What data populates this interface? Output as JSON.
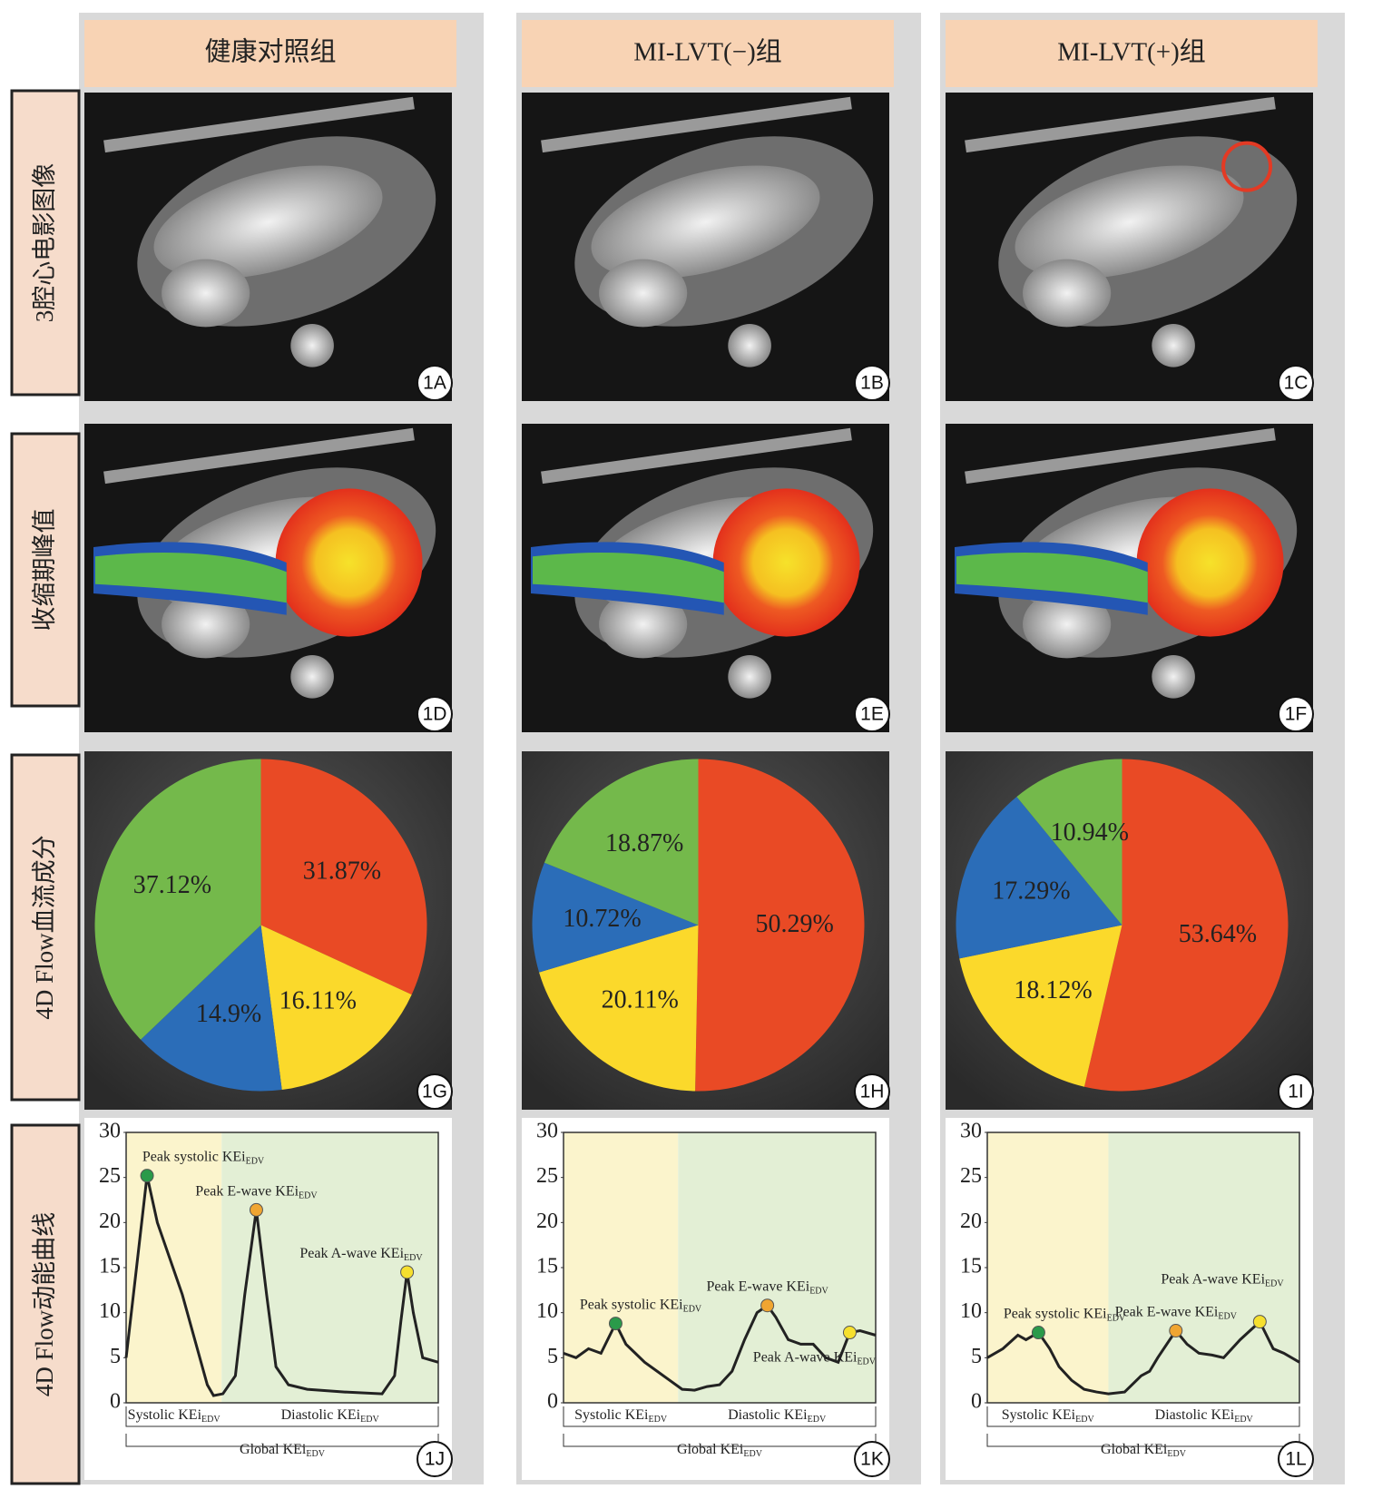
{
  "columns": [
    "健康对照组",
    "MI-LVT(−)组",
    "MI-LVT(+)组"
  ],
  "rows": [
    "3腔心电影图像",
    "收缩期峰值",
    "4D Flow血流成分",
    "4D Flow动能曲线"
  ],
  "panels": [
    "1A",
    "1B",
    "1C",
    "1D",
    "1E",
    "1F",
    "1G",
    "1H",
    "1I",
    "1J",
    "1K",
    "1L"
  ],
  "chart_data": [
    {
      "type": "pie",
      "values": [
        31.87,
        16.11,
        14.9,
        37.12
      ],
      "value_labels": [
        "31.87%",
        "16.11%",
        "14.9%",
        "37.12%"
      ],
      "colors": [
        "#e94a25",
        "#fbd92b",
        "#2b6db8",
        "#74b94b"
      ]
    },
    {
      "type": "pie",
      "values": [
        50.29,
        20.11,
        10.72,
        18.87
      ],
      "value_labels": [
        "50.29%",
        "20.11%",
        "10.72%",
        "18.87%"
      ],
      "colors": [
        "#e94a25",
        "#fbd92b",
        "#2b6db8",
        "#74b94b"
      ]
    },
    {
      "type": "pie",
      "values": [
        53.64,
        18.12,
        17.29,
        10.94
      ],
      "value_labels": [
        "53.64%",
        "18.12%",
        "17.29%",
        "10.94%"
      ],
      "colors": [
        "#e94a25",
        "#fbd92b",
        "#2b6db8",
        "#74b94b"
      ]
    },
    {
      "type": "line",
      "xlim": [
        0,
        100
      ],
      "ylim": [
        0,
        30
      ],
      "yticks": [
        0,
        5,
        10,
        15,
        20,
        25,
        30
      ],
      "x": [
        0,
        3,
        6.7,
        10,
        14,
        18,
        22,
        26,
        28,
        31,
        35,
        38,
        41.7,
        45,
        48,
        52,
        58,
        70,
        82,
        86,
        88,
        90,
        92,
        95,
        100
      ],
      "series": [
        {
          "color": "#222222",
          "values": [
            5,
            14,
            25.2,
            20,
            16,
            12,
            7,
            2,
            0.8,
            1,
            3,
            12,
            21.4,
            12,
            4,
            2,
            1.5,
            1.2,
            1,
            3,
            9,
            14.5,
            10,
            5,
            4.5
          ]
        }
      ],
      "regions": [
        {
          "label": "Systolic KEi",
          "subscript": "EDV",
          "from": 0,
          "to": 30.6,
          "color": "#fbf4cc"
        },
        {
          "label": "Diastolic KEi",
          "subscript": "EDV",
          "from": 30.6,
          "to": 100,
          "color": "#e3efd5"
        }
      ],
      "peaks": [
        {
          "label": "Peak systolic KEi",
          "subscript": "EDV",
          "x": 6.7,
          "y": 25.2,
          "color": "#2a9a4a"
        },
        {
          "label": "Peak E-wave KEi",
          "subscript": "EDV",
          "x": 41.7,
          "y": 21.4,
          "color": "#f0a531"
        },
        {
          "label": "Peak A-wave KEi",
          "subscript": "EDV",
          "x": 90,
          "y": 14.5,
          "color": "#f6e02e"
        }
      ],
      "global_label": {
        "label": "Global KEi",
        "subscript": "EDV"
      }
    },
    {
      "type": "line",
      "xlim": [
        0,
        100
      ],
      "ylim": [
        0,
        30
      ],
      "yticks": [
        0,
        5,
        10,
        15,
        20,
        25,
        30
      ],
      "x": [
        0,
        4,
        8,
        12,
        16.7,
        20,
        23,
        26,
        30,
        34,
        38,
        42,
        46,
        50,
        54,
        58,
        62,
        65.3,
        68,
        72,
        76,
        80,
        84,
        88,
        91.7,
        95,
        100
      ],
      "series": [
        {
          "color": "#222222",
          "values": [
            5.5,
            5,
            6,
            5.5,
            8.8,
            6.5,
            5.5,
            4.5,
            3.5,
            2.5,
            1.5,
            1.4,
            1.8,
            2,
            3.5,
            7,
            10,
            10.8,
            9.5,
            7,
            6.5,
            6.5,
            5,
            4.5,
            7.8,
            8,
            7.5
          ]
        }
      ],
      "regions": [
        {
          "label": "Systolic KEi",
          "subscript": "EDV",
          "from": 0,
          "to": 36.7,
          "color": "#fbf4cc"
        },
        {
          "label": "Diastolic KEi",
          "subscript": "EDV",
          "from": 36.7,
          "to": 100,
          "color": "#e3efd5"
        }
      ],
      "peaks": [
        {
          "label": "Peak systolic KEi",
          "subscript": "EDV",
          "x": 16.7,
          "y": 8.8,
          "color": "#2a9a4a"
        },
        {
          "label": "Peak E-wave KEi",
          "subscript": "EDV",
          "x": 65.3,
          "y": 10.8,
          "color": "#f0a531"
        },
        {
          "label": "Peak A-wave KEi",
          "subscript": "EDV",
          "x": 91.7,
          "y": 7.8,
          "color": "#f6e02e"
        }
      ],
      "global_label": {
        "label": "Global KEi",
        "subscript": "EDV"
      }
    },
    {
      "type": "line",
      "xlim": [
        0,
        100
      ],
      "ylim": [
        0,
        30
      ],
      "yticks": [
        0,
        5,
        10,
        15,
        20,
        25,
        30
      ],
      "x": [
        0,
        5,
        9.8,
        12.4,
        16.4,
        20,
        23,
        27,
        31,
        35,
        38.8,
        44,
        49.3,
        52,
        54.6,
        60.4,
        64,
        67.8,
        72,
        75.7,
        81,
        87.3,
        91.6,
        95,
        100
      ],
      "series": [
        {
          "color": "#222222",
          "values": [
            5,
            6,
            7.5,
            7,
            7.8,
            6,
            4,
            2.5,
            1.5,
            1.2,
            1,
            1.2,
            3,
            3.5,
            5,
            8,
            6.5,
            5.5,
            5.3,
            5,
            7,
            9,
            6,
            5.5,
            4.5
          ]
        }
      ],
      "regions": [
        {
          "label": "Systolic KEi",
          "subscript": "EDV",
          "from": 0,
          "to": 38.8,
          "color": "#fbf4cc"
        },
        {
          "label": "Diastolic KEi",
          "subscript": "EDV",
          "from": 38.8,
          "to": 100,
          "color": "#e3efd5"
        }
      ],
      "peaks": [
        {
          "label": "Peak systolic KEi",
          "subscript": "EDV",
          "x": 16.4,
          "y": 7.8,
          "color": "#2a9a4a"
        },
        {
          "label": "Peak E-wave KEi",
          "subscript": "EDV",
          "x": 60.4,
          "y": 8,
          "color": "#f0a531"
        },
        {
          "label": "Peak A-wave KEi",
          "subscript": "EDV",
          "x": 87.3,
          "y": 9,
          "color": "#f6e02e"
        }
      ],
      "global_label": {
        "label": "Global KEi",
        "subscript": "EDV"
      }
    }
  ]
}
